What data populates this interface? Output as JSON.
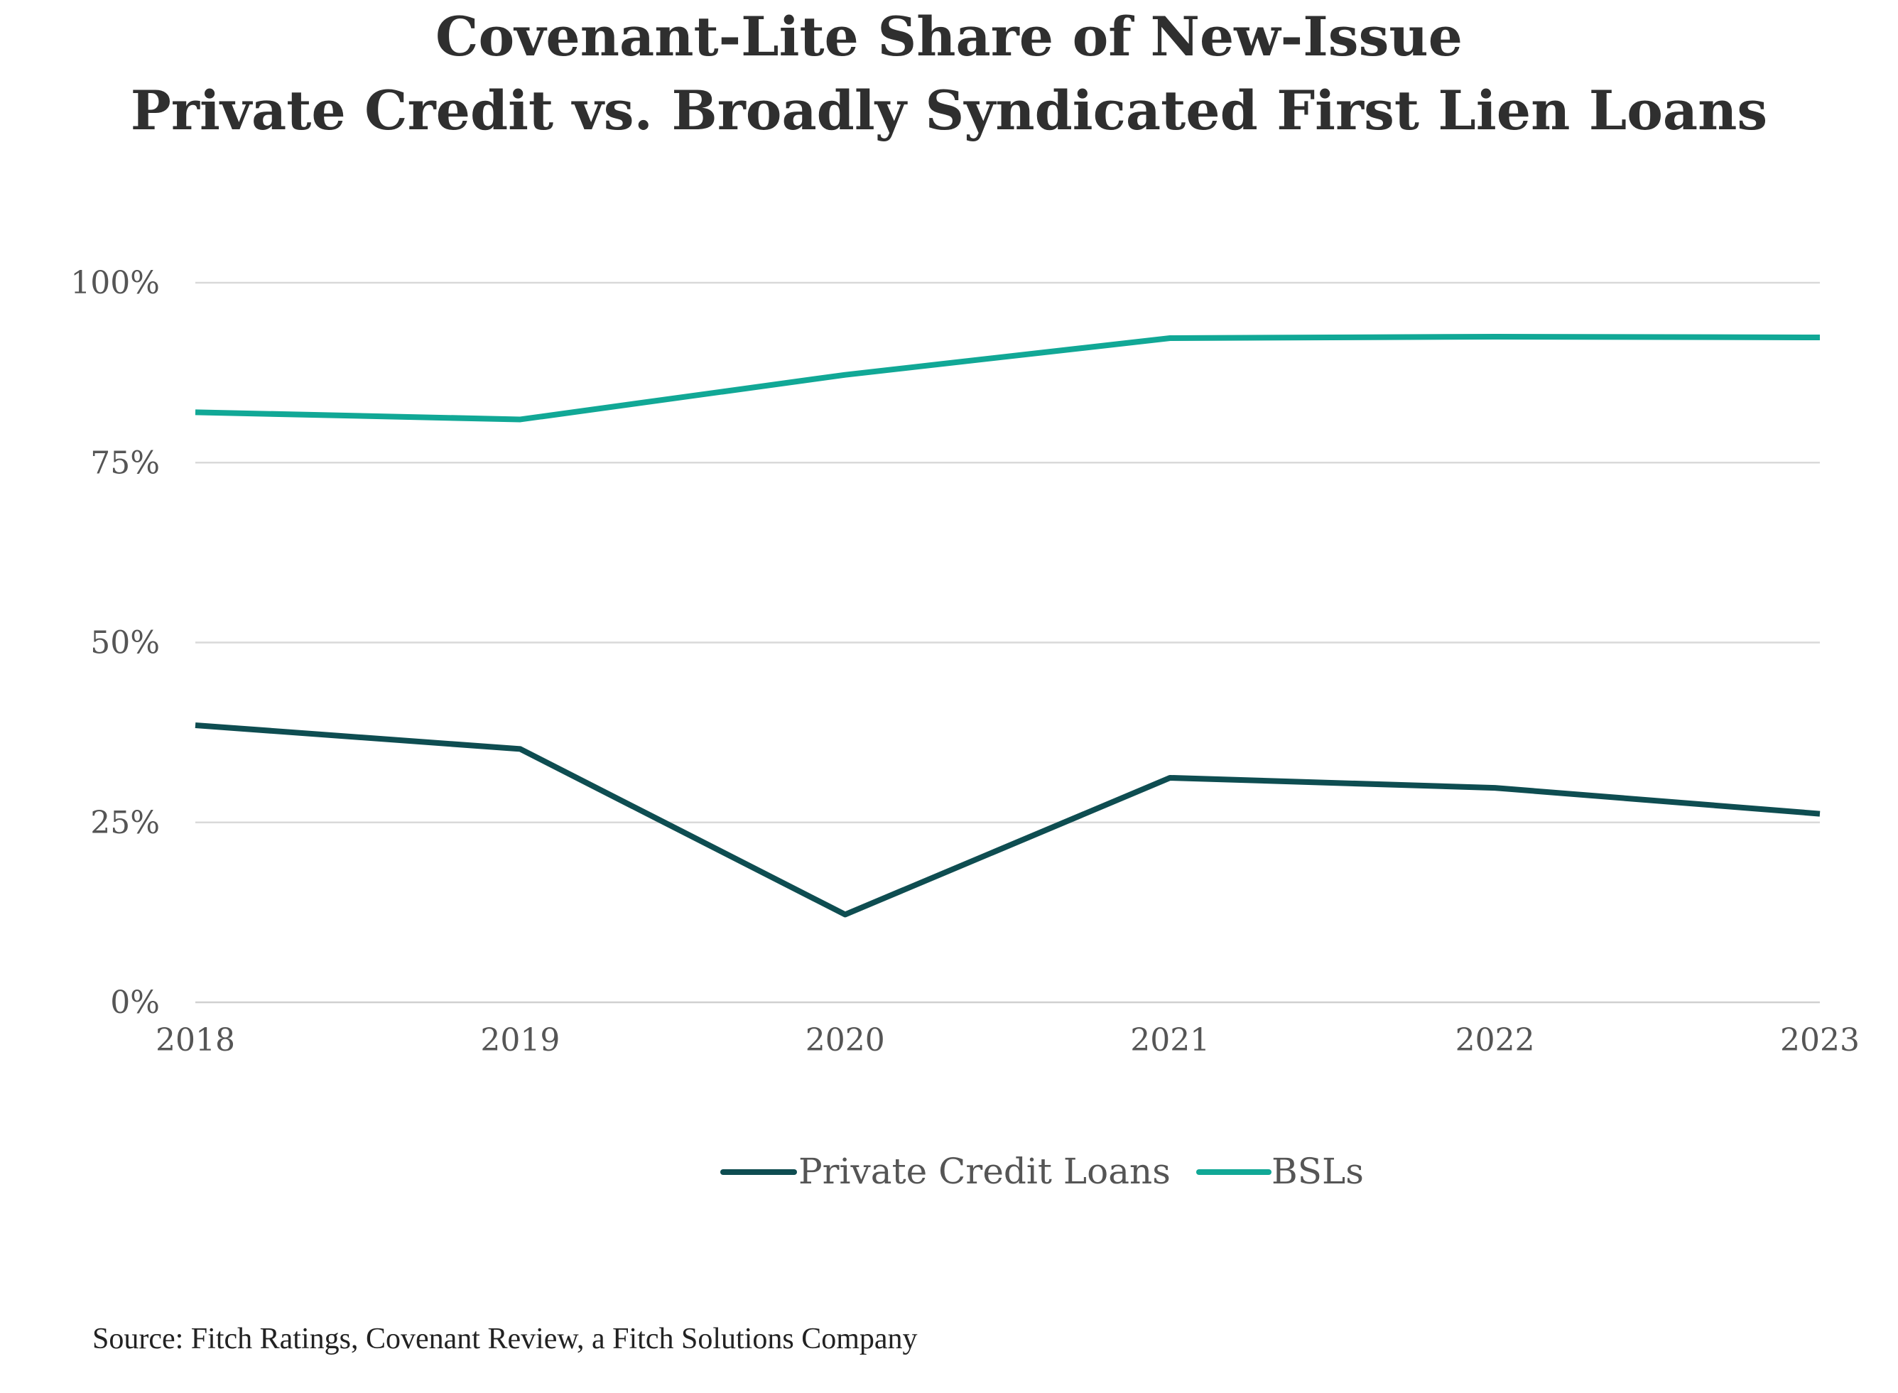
{
  "chart_data": {
    "type": "line",
    "title": [
      "Covenant-Lite Share of New-Issue",
      "Private Credit vs. Broadly Syndicated First Lien Loans"
    ],
    "xlabel": "",
    "ylabel": "",
    "categories": [
      "2018",
      "2019",
      "2020",
      "2021",
      "2022",
      "2023"
    ],
    "series": [
      {
        "name": "Private Credit Loans",
        "color": "#0e4d51",
        "values": [
          38.5,
          35.2,
          12.2,
          31.2,
          29.8,
          26.2
        ]
      },
      {
        "name": "BSLs",
        "color": "#11a896",
        "values": [
          82.0,
          81.0,
          87.2,
          92.3,
          92.5,
          92.4
        ]
      }
    ],
    "ylim": [
      0,
      100
    ],
    "yticks": [
      {
        "value": 0,
        "label": "0%"
      },
      {
        "value": 25,
        "label": "25%"
      },
      {
        "value": 50,
        "label": "50%"
      },
      {
        "value": 75,
        "label": "75%"
      },
      {
        "value": 100,
        "label": "100%"
      }
    ],
    "grid": true,
    "legend_position": "bottom-center",
    "source": "Source: Fitch Ratings, Covenant Review, a Fitch Solutions Company"
  }
}
